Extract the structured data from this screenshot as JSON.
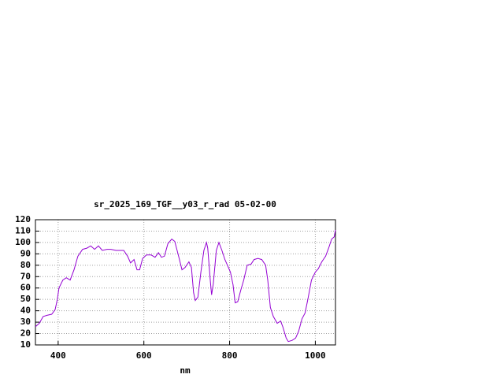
{
  "chart_data": {
    "type": "line",
    "title": "sr_2025_169_TGF__y03_r_rad 05-02-00",
    "x_label": "nm",
    "x": [
      347,
      356,
      365,
      374,
      385,
      393,
      398,
      402,
      411,
      419,
      428,
      437,
      446,
      457,
      467,
      476,
      485,
      494,
      503,
      514,
      523,
      535,
      545,
      553,
      562,
      569,
      577,
      584,
      590,
      597,
      606,
      617,
      626,
      634,
      641,
      648,
      656,
      665,
      672,
      681,
      689,
      696,
      705,
      711,
      716,
      720,
      726,
      733,
      740,
      746,
      749,
      755,
      758,
      762,
      769,
      775,
      782,
      789,
      795,
      802,
      808,
      813,
      819,
      826,
      833,
      841,
      850,
      857,
      866,
      875,
      884,
      889,
      895,
      902,
      911,
      919,
      924,
      932,
      937,
      946,
      954,
      961,
      969,
      976,
      983,
      991,
      1000,
      1007,
      1015,
      1024,
      1031,
      1038,
      1044,
      1047
    ],
    "series": [
      {
        "color": "#9400d3",
        "values": [
          26,
          29,
          35,
          36,
          37,
          41,
          50,
          60,
          67,
          69,
          67,
          76,
          88,
          94,
          95,
          97,
          94,
          97,
          93,
          94,
          94,
          93,
          93,
          93,
          88,
          82,
          85,
          76,
          76,
          86,
          89,
          89,
          87,
          91,
          87,
          88,
          99,
          103,
          101,
          88,
          76,
          78,
          83,
          78,
          56,
          49,
          52,
          74,
          93,
          100,
          95,
          66,
          54,
          64,
          93,
          100,
          93,
          85,
          80,
          74,
          63,
          47,
          48,
          58,
          67,
          80,
          81,
          85,
          86,
          85,
          80,
          67,
          43,
          35,
          29,
          31,
          26,
          16,
          13,
          14,
          16,
          22,
          33,
          38,
          51,
          67,
          74,
          77,
          83,
          88,
          95,
          103,
          105,
          111
        ]
      }
    ],
    "xlim": [
      347,
      1047
    ],
    "xticks": [
      400,
      600,
      800,
      1000
    ],
    "ylim": [
      10,
      120
    ],
    "yticks": [
      10,
      20,
      30,
      40,
      50,
      60,
      70,
      80,
      90,
      100,
      110,
      120
    ],
    "grid": true
  }
}
